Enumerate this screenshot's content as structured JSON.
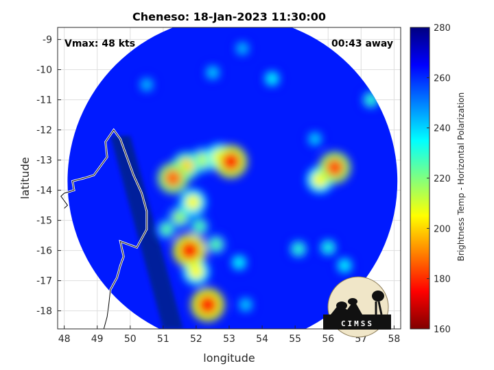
{
  "chart_data": {
    "type": "heatmap",
    "title": "Cheneso: 18-Jan-2023 11:30:00",
    "xlabel": "longitude",
    "ylabel": "latitude",
    "xlim": [
      47.8,
      58.2
    ],
    "ylim": [
      -18.6,
      -8.6
    ],
    "xticks": [
      48,
      49,
      50,
      51,
      52,
      53,
      54,
      55,
      56,
      57,
      58
    ],
    "yticks": [
      -9,
      -10,
      -11,
      -12,
      -13,
      -14,
      -15,
      -16,
      -17,
      -18
    ],
    "grid": true,
    "colorbar": {
      "label": "Brightness Temp - Horizontal Polarization",
      "min": 160,
      "max": 280,
      "ticks": [
        160,
        180,
        200,
        220,
        240,
        260,
        280
      ],
      "colors": [
        "#800000",
        "#ff0000",
        "#ff8000",
        "#ffff00",
        "#80ff80",
        "#00ffff",
        "#0080ff",
        "#0000ff",
        "#000080"
      ]
    },
    "annotations": {
      "vmax": "Vmax: 48 kts",
      "time_away": "00:43 away"
    },
    "swath": {
      "center_lon": 53.1,
      "center_lat": -13.7,
      "radius_deg": 5.0,
      "background_temp": 262
    },
    "features": [
      {
        "lon": 53.05,
        "lat": -13.05,
        "temp": 180
      },
      {
        "lon": 51.3,
        "lat": -13.6,
        "temp": 188
      },
      {
        "lon": 51.7,
        "lat": -13.2,
        "temp": 200
      },
      {
        "lon": 52.2,
        "lat": -13.0,
        "temp": 212
      },
      {
        "lon": 52.7,
        "lat": -12.9,
        "temp": 205
      },
      {
        "lon": 51.9,
        "lat": -14.4,
        "temp": 205
      },
      {
        "lon": 51.8,
        "lat": -16.0,
        "temp": 178
      },
      {
        "lon": 52.0,
        "lat": -16.7,
        "temp": 205
      },
      {
        "lon": 52.35,
        "lat": -17.8,
        "temp": 178
      },
      {
        "lon": 56.2,
        "lat": -13.25,
        "temp": 185
      },
      {
        "lon": 55.75,
        "lat": -13.65,
        "temp": 205
      },
      {
        "lon": 51.1,
        "lat": -15.3,
        "temp": 225
      },
      {
        "lon": 51.5,
        "lat": -14.9,
        "temp": 218
      },
      {
        "lon": 52.1,
        "lat": -15.2,
        "temp": 226
      },
      {
        "lon": 52.6,
        "lat": -15.8,
        "temp": 225
      },
      {
        "lon": 55.1,
        "lat": -15.95,
        "temp": 230
      },
      {
        "lon": 56.0,
        "lat": -15.9,
        "temp": 232
      },
      {
        "lon": 56.5,
        "lat": -16.5,
        "temp": 235
      },
      {
        "lon": 57.3,
        "lat": -11.0,
        "temp": 230
      },
      {
        "lon": 54.3,
        "lat": -10.3,
        "temp": 235
      },
      {
        "lon": 52.5,
        "lat": -10.1,
        "temp": 240
      },
      {
        "lon": 50.5,
        "lat": -10.5,
        "temp": 242
      },
      {
        "lon": 53.4,
        "lat": -9.3,
        "temp": 242
      },
      {
        "lon": 53.3,
        "lat": -16.4,
        "temp": 235
      },
      {
        "lon": 55.6,
        "lat": -12.3,
        "temp": 240
      },
      {
        "lon": 53.5,
        "lat": -17.8,
        "temp": 240
      }
    ],
    "dark_band": [
      [
        49.4,
        -12.2
      ],
      [
        50.0,
        -12.2
      ],
      [
        51.6,
        -18.6
      ],
      [
        51.0,
        -18.6
      ]
    ],
    "coastline": [
      [
        48.0,
        -14.6
      ],
      [
        48.1,
        -14.5
      ],
      [
        47.9,
        -14.2
      ],
      [
        48.0,
        -14.1
      ],
      [
        48.3,
        -14.0
      ],
      [
        48.25,
        -13.7
      ],
      [
        48.6,
        -13.6
      ],
      [
        48.9,
        -13.5
      ],
      [
        49.1,
        -13.2
      ],
      [
        49.3,
        -12.9
      ],
      [
        49.25,
        -12.4
      ],
      [
        49.5,
        -12.0
      ],
      [
        49.7,
        -12.3
      ],
      [
        49.9,
        -12.9
      ],
      [
        50.1,
        -13.5
      ],
      [
        50.35,
        -14.1
      ],
      [
        50.5,
        -14.7
      ],
      [
        50.5,
        -15.3
      ],
      [
        50.2,
        -15.9
      ],
      [
        49.7,
        -15.7
      ],
      [
        49.8,
        -16.2
      ],
      [
        49.7,
        -16.5
      ],
      [
        49.6,
        -16.9
      ],
      [
        49.4,
        -17.3
      ],
      [
        49.35,
        -17.8
      ],
      [
        49.3,
        -18.2
      ],
      [
        49.2,
        -18.6
      ]
    ],
    "watermark": "CIMSS"
  }
}
